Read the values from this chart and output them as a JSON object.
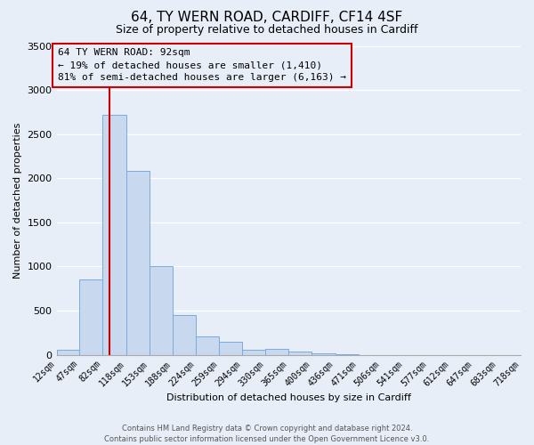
{
  "title": "64, TY WERN ROAD, CARDIFF, CF14 4SF",
  "subtitle": "Size of property relative to detached houses in Cardiff",
  "xlabel": "Distribution of detached houses by size in Cardiff",
  "ylabel": "Number of detached properties",
  "footer_line1": "Contains HM Land Registry data © Crown copyright and database right 2024.",
  "footer_line2": "Contains public sector information licensed under the Open Government Licence v3.0.",
  "annotation_title": "64 TY WERN ROAD: 92sqm",
  "annotation_line2": "← 19% of detached houses are smaller (1,410)",
  "annotation_line3": "81% of semi-detached houses are larger (6,163) →",
  "bin_edges": [
    12,
    47,
    82,
    118,
    153,
    188,
    224,
    259,
    294,
    330,
    365,
    400,
    436,
    471,
    506,
    541,
    577,
    612,
    647,
    683,
    718
  ],
  "bar_heights": [
    55,
    855,
    2720,
    2080,
    1010,
    455,
    210,
    150,
    55,
    65,
    35,
    20,
    10,
    0,
    0,
    0,
    0,
    0,
    0,
    0
  ],
  "bar_color": "#c8d8ee",
  "bar_edge_color": "#7aaadd",
  "vline_x": 92,
  "vline_color": "#cc0000",
  "ylim": [
    0,
    3500
  ],
  "background_color": "#e8eef8",
  "box_color": "#cc0000",
  "grid_color": "#ffffff",
  "tick_labels": [
    "12sqm",
    "47sqm",
    "82sqm",
    "118sqm",
    "153sqm",
    "188sqm",
    "224sqm",
    "259sqm",
    "294sqm",
    "330sqm",
    "365sqm",
    "400sqm",
    "436sqm",
    "471sqm",
    "506sqm",
    "541sqm",
    "577sqm",
    "612sqm",
    "647sqm",
    "683sqm",
    "718sqm"
  ],
  "yticks": [
    0,
    500,
    1000,
    1500,
    2000,
    2500,
    3000,
    3500
  ],
  "title_fontsize": 11,
  "subtitle_fontsize": 9,
  "axis_label_fontsize": 8,
  "tick_fontsize": 7,
  "footer_fontsize": 6,
  "annotation_fontsize": 8
}
